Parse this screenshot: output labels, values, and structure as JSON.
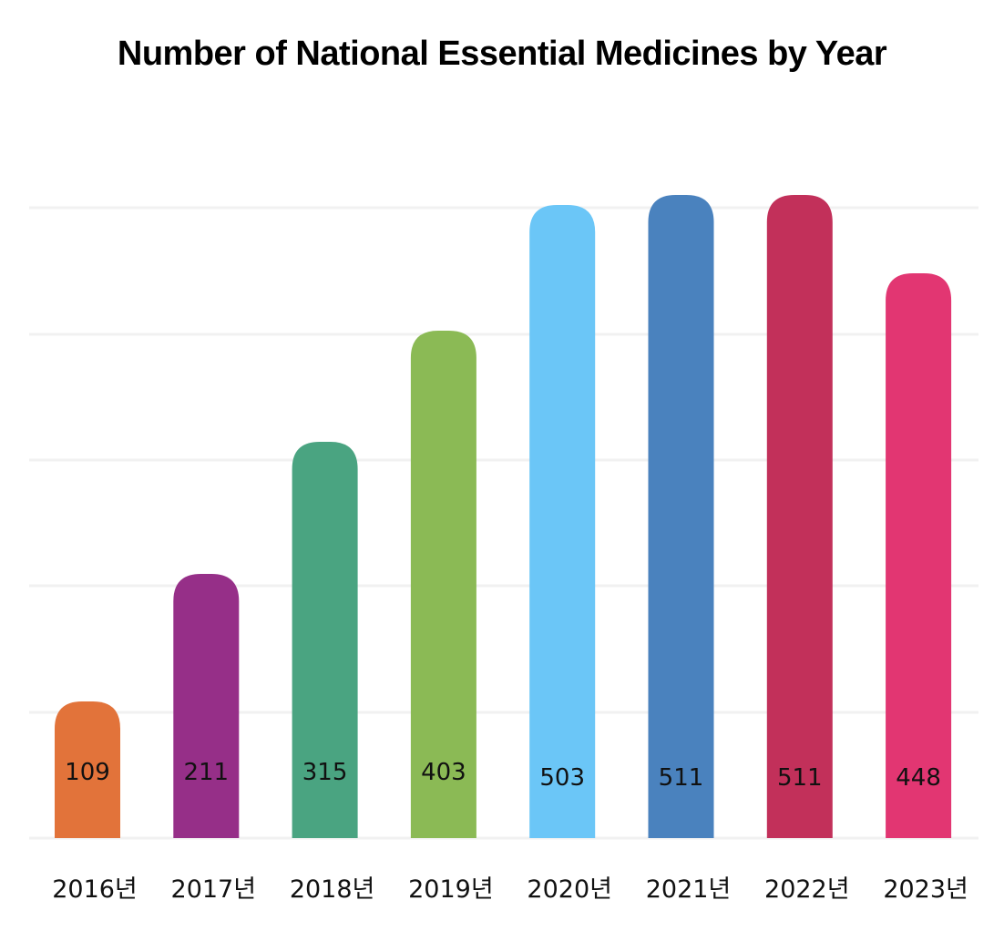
{
  "chart_data": {
    "type": "bar",
    "title": "Number of National Essential Medicines by Year",
    "xlabel": "",
    "ylabel": "",
    "categories": [
      "2016년",
      "2017년",
      "2018년",
      "2019년",
      "2020년",
      "2021년",
      "2022년",
      "2023년"
    ],
    "values": [
      109,
      211,
      315,
      403,
      503,
      511,
      511,
      448
    ],
    "value_labels": [
      "109",
      "211",
      "315",
      "403",
      "503",
      "511",
      "511",
      "448"
    ],
    "colors": [
      "#E2733A",
      "#962F88",
      "#4AA481",
      "#8BBA55",
      "#6BC6F7",
      "#4A82BE",
      "#C2305A",
      "#E23672"
    ],
    "grid": true,
    "legend": "none",
    "ylim": [
      0,
      520
    ]
  }
}
